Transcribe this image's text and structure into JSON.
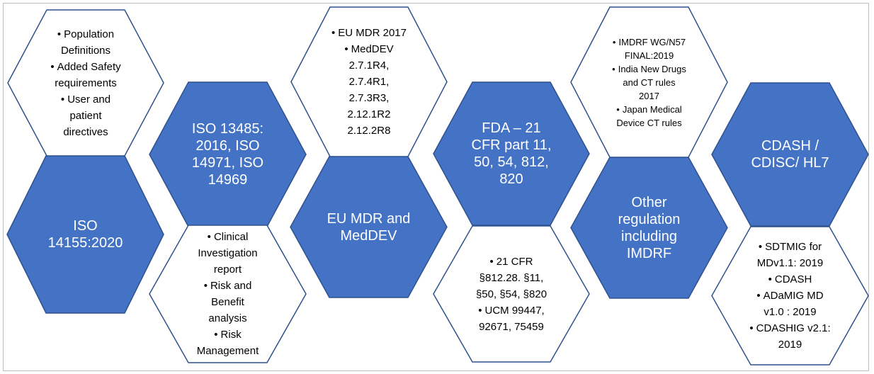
{
  "colors": {
    "blue_fill": "#4472c4",
    "blue_stroke": "#2f528f",
    "white_stroke": "#2f528f"
  },
  "hexagons": [
    {
      "id": "iso14155",
      "style": "blue",
      "lines": [
        "ISO",
        "14155:2020"
      ]
    },
    {
      "id": "iso-standards",
      "style": "blue",
      "lines": [
        "ISO 13485:",
        "2016, ISO",
        "14971, ISO",
        "14969"
      ]
    },
    {
      "id": "eu-mdr",
      "style": "blue",
      "lines": [
        "EU MDR and",
        "MedDEV"
      ]
    },
    {
      "id": "fda",
      "style": "blue",
      "lines": [
        "FDA – 21",
        "CFR part 11,",
        "50, 54, 812,",
        "820"
      ]
    },
    {
      "id": "other-regulation",
      "style": "blue",
      "lines": [
        "Other",
        "regulation",
        "including",
        "IMDRF"
      ]
    },
    {
      "id": "cdash",
      "style": "blue",
      "lines": [
        "CDASH /",
        "CDISC/ HL7"
      ]
    },
    {
      "id": "iso14155-details",
      "style": "white",
      "bullets": [
        {
          "lines": [
            "Population",
            "Definitions"
          ]
        },
        {
          "lines": [
            "Added Safety",
            "requirements"
          ]
        },
        {
          "lines": [
            "User and",
            "patient",
            "directives"
          ]
        }
      ]
    },
    {
      "id": "iso-standards-details",
      "style": "white",
      "bullets": [
        {
          "lines": [
            "Clinical",
            "Investigation",
            "report"
          ]
        },
        {
          "lines": [
            "Risk and",
            "Benefit",
            "analysis"
          ]
        },
        {
          "lines": [
            "Risk",
            "Management"
          ]
        }
      ]
    },
    {
      "id": "eu-mdr-details",
      "style": "white",
      "bullets": [
        {
          "lines": [
            "EU MDR 2017"
          ]
        },
        {
          "lines": [
            "MedDEV",
            "2.7.1R4,",
            "2.7.4R1,",
            "2.7.3R3,",
            "2.12.1R2",
            "2.12.2R8"
          ]
        }
      ]
    },
    {
      "id": "fda-details",
      "style": "white",
      "bullets": [
        {
          "lines": [
            "21 CFR",
            "§812.28. §11,",
            "§50, §54, §820"
          ]
        },
        {
          "lines": [
            "UCM 99447,",
            "92671, 75459"
          ]
        }
      ]
    },
    {
      "id": "other-regulation-details",
      "style": "white-small",
      "bullets": [
        {
          "lines": [
            "IMDRF WG/N57",
            "FINAL:2019"
          ]
        },
        {
          "lines": [
            "India New Drugs",
            "and CT rules",
            "2017"
          ]
        },
        {
          "lines": [
            "Japan Medical",
            "Device CT rules"
          ]
        }
      ]
    },
    {
      "id": "cdash-details",
      "style": "white",
      "bullets": [
        {
          "lines": [
            "SDTMIG for",
            "MDv1.1: 2019"
          ]
        },
        {
          "lines": [
            "CDASH"
          ]
        },
        {
          "lines": [
            "ADaMIG MD",
            "v1.0 : 2019"
          ]
        },
        {
          "lines": [
            "CDASHIG v2.1:",
            "2019"
          ]
        }
      ]
    }
  ]
}
